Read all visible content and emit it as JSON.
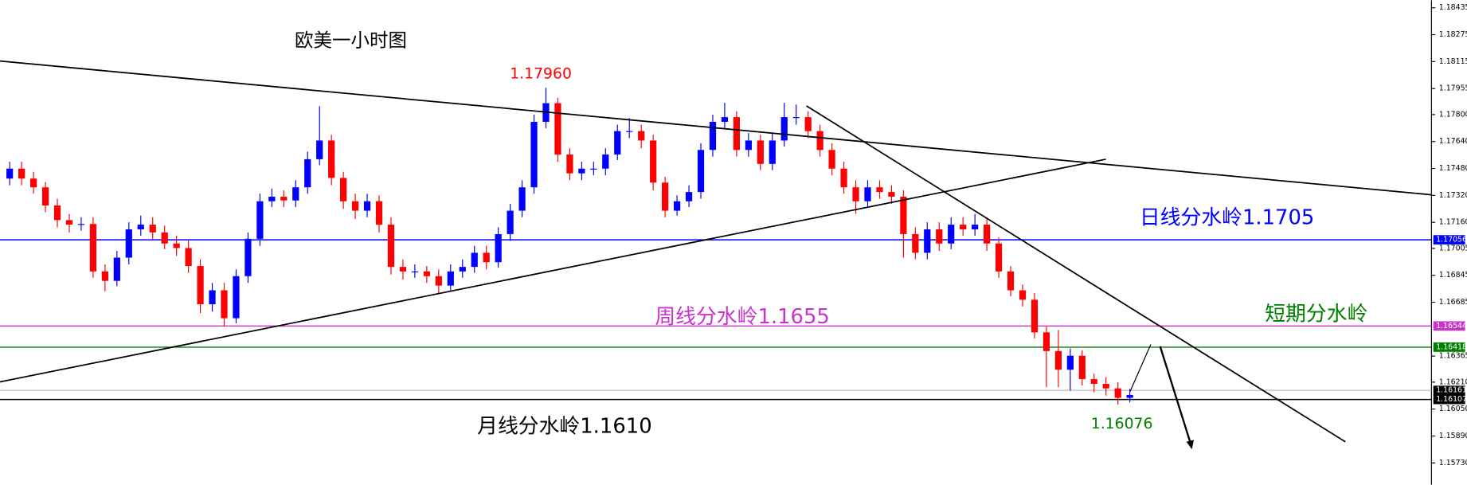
{
  "chart_data": {
    "type": "candlestick",
    "title": "欧美一小时图",
    "up_color": "#0000ff",
    "down_color": "#ff0000",
    "open": [
      1.1742,
      1.17479,
      1.1742,
      1.17368,
      1.1726,
      1.17173,
      1.17146,
      1.1715,
      1.16868,
      1.16812,
      1.1695,
      1.17118,
      1.17146,
      1.171,
      1.17034,
      1.17007,
      1.169,
      1.16673,
      1.16756,
      1.1659,
      1.1684,
      1.17062,
      1.17285,
      1.17312,
      1.1729,
      1.17368,
      1.17535,
      1.17646,
      1.17424,
      1.17285,
      1.17229,
      1.17285,
      1.17146,
      1.16895,
      1.16868,
      1.16868,
      1.1684,
      1.16784,
      1.16868,
      1.16895,
      1.16979,
      1.16923,
      1.1709,
      1.17229,
      1.17368,
      1.17757,
      1.17868,
      1.17563,
      1.17451,
      1.17479,
      1.17479,
      1.17563,
      1.17702,
      1.17702,
      1.17646,
      1.17396,
      1.17229,
      1.17285,
      1.1734,
      1.1759,
      1.17757,
      1.17785,
      1.1759,
      1.17646,
      1.17507,
      1.17646,
      1.17785,
      1.17785,
      1.17702,
      1.1759,
      1.17479,
      1.17368,
      1.17285,
      1.17368,
      1.1734,
      1.17312,
      1.1709,
      1.16979,
      1.17118,
      1.17034,
      1.17146,
      1.17118,
      1.17146,
      1.17034,
      1.16868,
      1.16756,
      1.167,
      1.16506,
      1.16395,
      1.16284,
      1.16367,
      1.16228,
      1.162,
      1.16173,
      1.16117
    ],
    "high": [
      1.1752,
      1.1752,
      1.1746,
      1.174,
      1.173,
      1.1721,
      1.1719,
      1.1719,
      1.1691,
      1.1699,
      1.1716,
      1.172,
      1.1719,
      1.1714,
      1.1708,
      1.1705,
      1.1694,
      1.168,
      1.168,
      1.1688,
      1.171,
      1.1733,
      1.1736,
      1.1735,
      1.1741,
      1.1758,
      1.1785,
      1.1768,
      1.1746,
      1.1733,
      1.1733,
      1.1732,
      1.1719,
      1.1694,
      1.1691,
      1.169,
      1.1688,
      1.1691,
      1.1694,
      1.1702,
      1.1702,
      1.1713,
      1.1727,
      1.1741,
      1.178,
      1.1796,
      1.179,
      1.176,
      1.1752,
      1.1752,
      1.176,
      1.1774,
      1.1778,
      1.1774,
      1.1768,
      1.1743,
      1.1732,
      1.1738,
      1.1763,
      1.178,
      1.1787,
      1.1782,
      1.1769,
      1.1768,
      1.1769,
      1.1787,
      1.1786,
      1.1782,
      1.1774,
      1.1763,
      1.1752,
      1.1741,
      1.1741,
      1.1741,
      1.1738,
      1.1735,
      1.1713,
      1.1716,
      1.1716,
      1.1719,
      1.1719,
      1.1721,
      1.1719,
      1.1707,
      1.169,
      1.1679,
      1.1674,
      1.1654,
      1.1652,
      1.1641,
      1.164,
      1.1626,
      1.1624,
      1.1621,
      1.1617
    ],
    "low": [
      1.1738,
      1.1738,
      1.1733,
      1.1722,
      1.1713,
      1.171,
      1.1711,
      1.1683,
      1.1675,
      1.1678,
      1.1691,
      1.1708,
      1.1706,
      1.17,
      1.1696,
      1.1686,
      1.1662,
      1.1663,
      1.1654,
      1.1656,
      1.168,
      1.1702,
      1.1725,
      1.1725,
      1.1725,
      1.1733,
      1.175,
      1.1738,
      1.1724,
      1.1718,
      1.1719,
      1.171,
      1.1685,
      1.1682,
      1.1683,
      1.168,
      1.1674,
      1.1675,
      1.1683,
      1.1686,
      1.1688,
      1.1689,
      1.1705,
      1.1719,
      1.1733,
      1.1772,
      1.1752,
      1.1741,
      1.1741,
      1.1744,
      1.1744,
      1.1753,
      1.1766,
      1.176,
      1.1735,
      1.1719,
      1.172,
      1.1725,
      1.173,
      1.1755,
      1.1772,
      1.1755,
      1.1755,
      1.1747,
      1.1747,
      1.1761,
      1.1774,
      1.1766,
      1.1755,
      1.1744,
      1.1733,
      1.1721,
      1.1725,
      1.173,
      1.1727,
      1.1695,
      1.1694,
      1.1694,
      1.1699,
      1.17,
      1.1708,
      1.1708,
      1.1699,
      1.1683,
      1.1672,
      1.1666,
      1.1647,
      1.1618,
      1.1618,
      1.1616,
      1.1619,
      1.1615,
      1.1613,
      1.16076,
      1.1609
    ],
    "close": [
      1.17479,
      1.1742,
      1.17368,
      1.1726,
      1.17173,
      1.17146,
      1.1715,
      1.16868,
      1.16812,
      1.1695,
      1.17118,
      1.17146,
      1.171,
      1.17034,
      1.17007,
      1.169,
      1.16673,
      1.16756,
      1.1659,
      1.1684,
      1.17062,
      1.17285,
      1.17312,
      1.1729,
      1.17368,
      1.17535,
      1.17646,
      1.17424,
      1.17285,
      1.17229,
      1.17285,
      1.17146,
      1.16895,
      1.16868,
      1.16868,
      1.1684,
      1.16784,
      1.16868,
      1.16895,
      1.16979,
      1.16923,
      1.1709,
      1.17229,
      1.17368,
      1.17757,
      1.17868,
      1.17563,
      1.17451,
      1.17479,
      1.17479,
      1.17563,
      1.17702,
      1.17702,
      1.17646,
      1.17396,
      1.17229,
      1.17285,
      1.1734,
      1.1759,
      1.17757,
      1.17785,
      1.1759,
      1.17646,
      1.17507,
      1.17646,
      1.17785,
      1.17785,
      1.17702,
      1.1759,
      1.17479,
      1.17368,
      1.17285,
      1.17368,
      1.1734,
      1.17312,
      1.1709,
      1.16979,
      1.17118,
      1.17034,
      1.17146,
      1.17118,
      1.17146,
      1.17034,
      1.16868,
      1.16756,
      1.167,
      1.16506,
      1.16395,
      1.16284,
      1.16367,
      1.16228,
      1.162,
      1.16173,
      1.16117,
      1.16134
    ],
    "ylim": [
      1.156,
      1.1848
    ],
    "yticks": [
      1.18435,
      1.18275,
      1.18115,
      1.17955,
      {
        "value": 1.178,
        "label": "1.17800"
      },
      {
        "value": 1.1764,
        "label": "1.17640"
      },
      {
        "value": 1.1748,
        "label": "1.17480"
      },
      {
        "value": 1.1732,
        "label": "1.17320"
      },
      {
        "value": 1.1716,
        "label": "1.17160"
      },
      1.17005,
      1.16845,
      1.16685,
      1.16365,
      {
        "value": 1.1621,
        "label": "1.16210"
      },
      {
        "value": 1.1605,
        "label": "1.16050"
      },
      {
        "value": 1.1589,
        "label": "1.15890"
      },
      {
        "value": 1.1573,
        "label": "1.15730"
      }
    ],
    "levels": [
      {
        "value": 1.17056,
        "color": "#0000ff"
      },
      {
        "value": 1.16544,
        "color": "#cc33cc"
      },
      {
        "value": 1.16418,
        "color": "#008000"
      },
      {
        "value": 1.16161,
        "color": "#c0c0c0"
      },
      {
        "value": 1.16107,
        "color": "#000000"
      }
    ],
    "annotations": [
      "1.17960",
      "日线分水岭1.1705",
      "周线分水岭1.1655",
      "短期分水岭",
      "月线分水岭1.1610",
      "1.16076"
    ]
  }
}
